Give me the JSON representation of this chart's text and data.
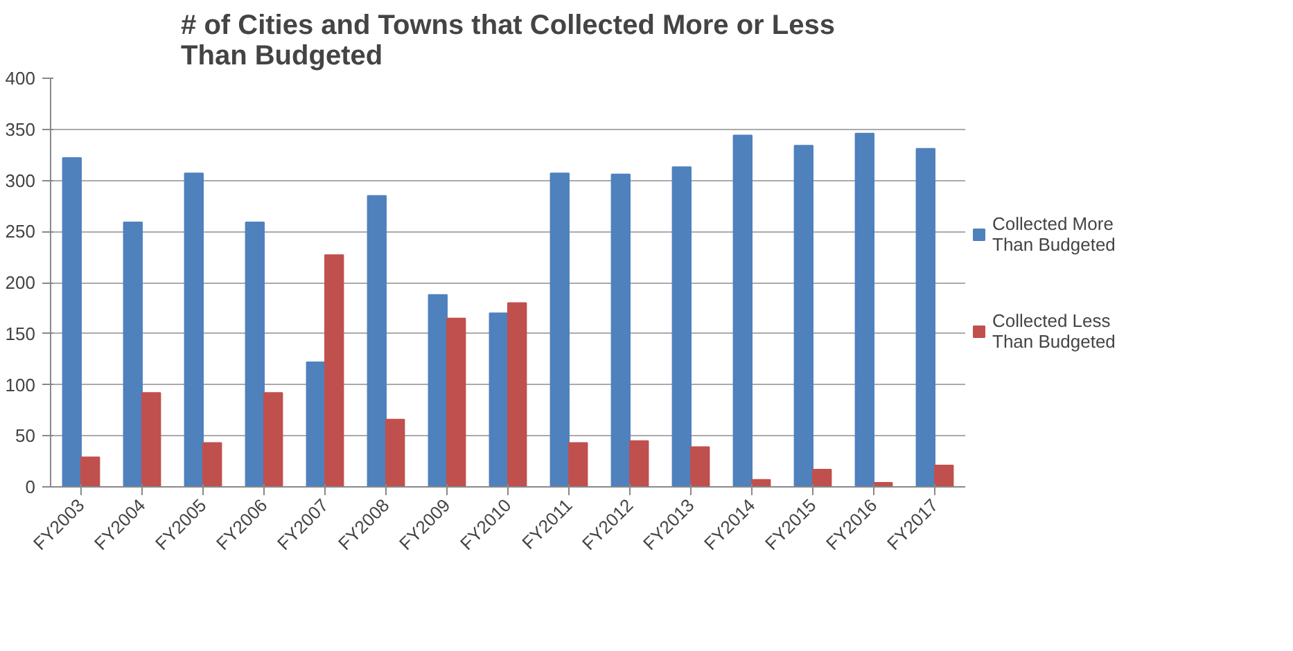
{
  "chart_data": {
    "type": "bar",
    "title": "# of Cities and Towns that Collected More or Less Than Budgeted",
    "categories": [
      "FY2003",
      "FY2004",
      "FY2005",
      "FY2006",
      "FY2007",
      "FY2008",
      "FY2009",
      "FY2010",
      "FY2011",
      "FY2012",
      "FY2013",
      "FY2014",
      "FY2015",
      "FY2016",
      "FY2017"
    ],
    "series": [
      {
        "name": "Collected More Than Budgeted",
        "color": "#4f81bd",
        "values": [
          322,
          259,
          307,
          259,
          122,
          285,
          188,
          170,
          307,
          306,
          313,
          344,
          334,
          346,
          331
        ]
      },
      {
        "name": "Collected Less Than Budgeted",
        "color": "#c0504d",
        "values": [
          29,
          92,
          43,
          92,
          227,
          66,
          165,
          180,
          43,
          45,
          39,
          7,
          17,
          4,
          21
        ]
      }
    ],
    "ylim": [
      0,
      400
    ],
    "yticks": [
      0,
      50,
      100,
      150,
      200,
      250,
      300,
      350,
      400
    ],
    "grid": "y",
    "legend": "right"
  }
}
